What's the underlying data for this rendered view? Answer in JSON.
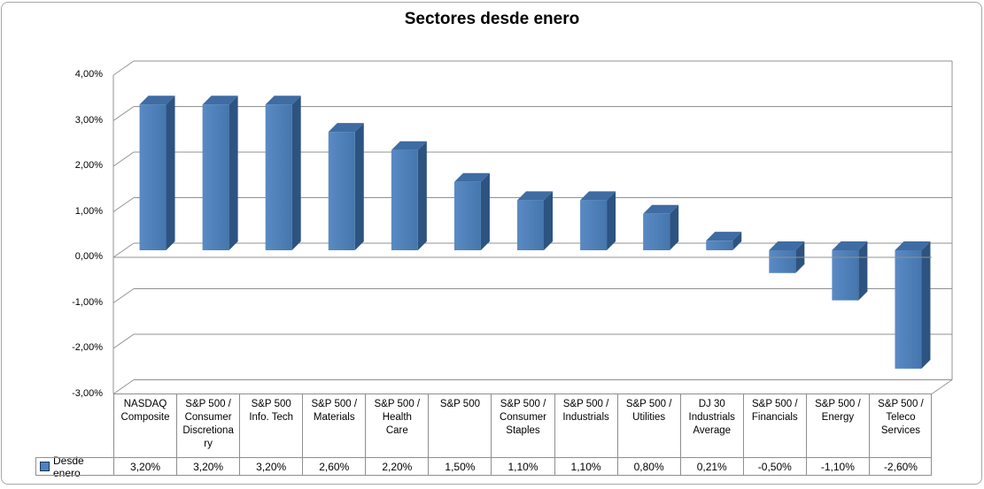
{
  "chart_data": {
    "type": "bar",
    "style": "excel-3d-column",
    "title": "Sectores desde enero",
    "series_name": "Desde enero",
    "categories": [
      "NASDAQ\nComposite",
      "S&P 500 /\nConsumer\nDiscretiona\nry",
      "S&P 500\nInfo. Tech",
      "S&P 500 /\nMaterials",
      "S&P 500 /\nHealth\nCare",
      "S&P 500",
      "S&P 500 /\nConsumer\nStaples",
      "S&P 500 /\nIndustrials",
      "S&P 500 /\nUtilities",
      "DJ 30\nIndustrials\nAverage",
      "S&P 500 /\nFinancials",
      "S&P 500 /\nEnergy",
      "S&P 500 /\nTeleco\nServices"
    ],
    "values": [
      3.2,
      3.2,
      3.2,
      2.6,
      2.2,
      1.5,
      1.1,
      1.1,
      0.8,
      0.21,
      -0.5,
      -1.1,
      -2.6
    ],
    "value_labels": [
      "3,20%",
      "3,20%",
      "3,20%",
      "2,60%",
      "2,20%",
      "1,50%",
      "1,10%",
      "1,10%",
      "0,80%",
      "0,21%",
      "-0,50%",
      "-1,10%",
      "-2,60%"
    ],
    "y_ticks": [
      "4,00%",
      "3,00%",
      "2,00%",
      "1,00%",
      "0,00%",
      "-1,00%",
      "-2,00%",
      "-3,00%"
    ],
    "y_tick_values": [
      4,
      3,
      2,
      1,
      0,
      -1,
      -2,
      -3
    ],
    "ylim": [
      -3,
      4
    ],
    "xlabel": "",
    "ylabel": "",
    "grid": true,
    "legend_position": "bottom-left-data-table",
    "colors": {
      "bar_front": "#4e80bb",
      "bar_front_light": "#5a8ac4",
      "bar_front_dark": "#4576ad",
      "bar_side": "#2d5380",
      "bar_top": "#3e6ca3",
      "grid_line": "#919191",
      "table_border": "#8e8e8e",
      "frame_border": "#a6a6a6",
      "legend_swatch": "#4f81bd"
    }
  }
}
